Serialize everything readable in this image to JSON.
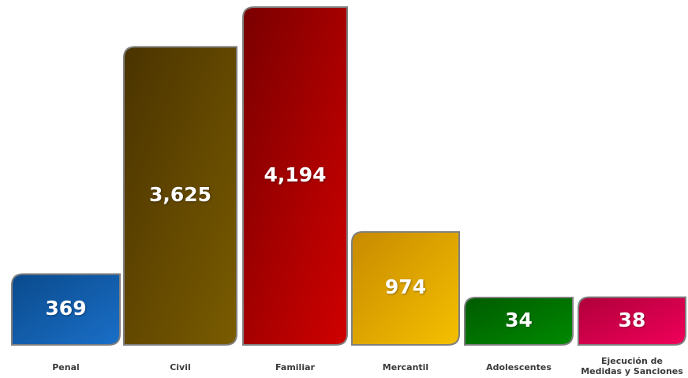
{
  "chart_data": {
    "type": "bar",
    "categories": [
      "Penal",
      "Civil",
      "Familiar",
      "Mercantil",
      "Adolescentes",
      "Ejecución de\nMedidas y Sanciones"
    ],
    "values": [
      369,
      3625,
      4194,
      974,
      34,
      38
    ],
    "value_labels": [
      "369",
      "3,625",
      "4,194",
      "974",
      "34",
      "38"
    ],
    "title": "",
    "xlabel": "",
    "ylabel": "",
    "grid": false,
    "legend": "none",
    "colors": [
      [
        "#0a4a8c",
        "#1a6fc8"
      ],
      [
        "#4a3300",
        "#7a5c00"
      ],
      [
        "#7a0000",
        "#d00000"
      ],
      [
        "#c78a00",
        "#f5c000"
      ],
      [
        "#005a00",
        "#008a00"
      ],
      [
        "#b0003a",
        "#f0005a"
      ]
    ],
    "border_color": "#7f7f7f"
  }
}
